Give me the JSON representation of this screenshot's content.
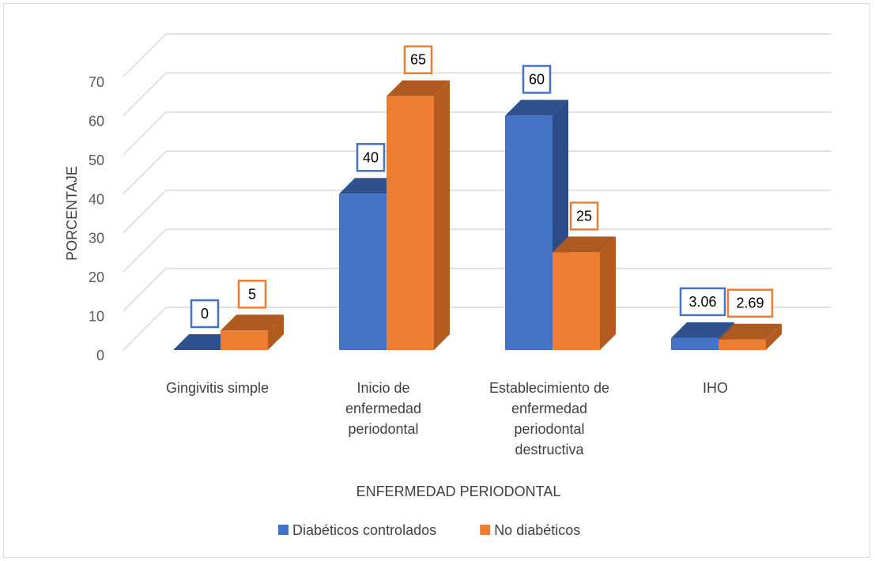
{
  "chart_data": {
    "type": "bar",
    "title": "",
    "xlabel": "ENFERMEDAD PERIODONTAL",
    "ylabel": "PORCENTAJE",
    "ylim": [
      0,
      70
    ],
    "yticks": [
      "0",
      "10",
      "20",
      "30",
      "40",
      "50",
      "60",
      "70"
    ],
    "grid": true,
    "legend_position": "bottom",
    "categories": [
      [
        "Gingivitis simple"
      ],
      [
        "Inicio de",
        "enfermedad",
        "periodontal"
      ],
      [
        "Establecimiento de",
        "enfermedad",
        "periodontal",
        "destructiva"
      ],
      [
        "IHO"
      ]
    ],
    "series": [
      {
        "name": "Diabéticos controlados",
        "color": "#4472C4",
        "values": [
          0,
          40,
          60,
          3.06
        ],
        "labels": [
          "0",
          "40",
          "60",
          "3.06"
        ]
      },
      {
        "name": "No diabéticos",
        "color": "#ED7D31",
        "values": [
          5,
          65,
          25,
          2.69
        ],
        "labels": [
          "5",
          "65",
          "25",
          "2.69"
        ]
      }
    ]
  }
}
